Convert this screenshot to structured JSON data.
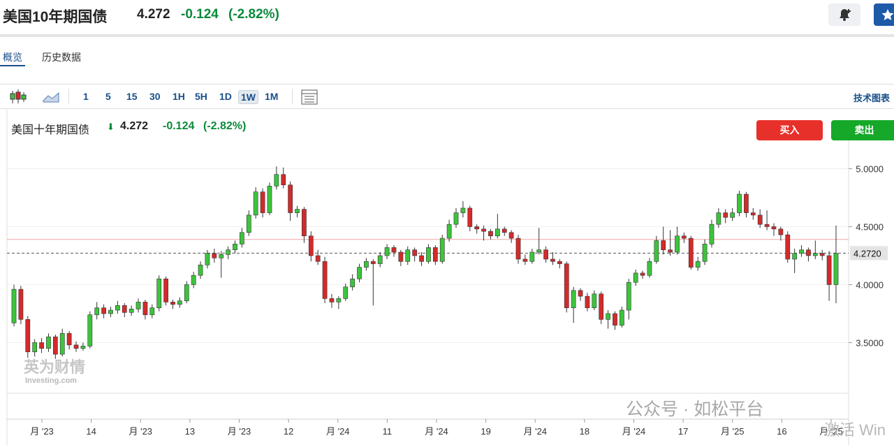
{
  "header": {
    "title": "美国10年期国债",
    "price": "4.272",
    "change": "-0.124",
    "change_pct": "(-2.82%)"
  },
  "tabs": [
    "概览",
    "历史数据"
  ],
  "toolbar": {
    "intervals": [
      "1",
      "5",
      "15",
      "30",
      "1H",
      "5H",
      "1D",
      "1W",
      "1M"
    ],
    "active_interval": "1W",
    "tech": "技术图表"
  },
  "chart_header": {
    "name": "美国十年期国债",
    "price": "4.272",
    "change": "-0.124",
    "change_pct": "(-2.82%)",
    "buy": "买入",
    "sell": "卖出"
  },
  "watermark": {
    "brand": "英为财情",
    "sub": "Investing.com"
  },
  "overlay": {
    "wechat": "公众号 · 如松平台",
    "activate": "激活 Win"
  },
  "chart_data": {
    "type": "candlestick",
    "up_color": "#3cc43c",
    "down_color": "#d42a2a",
    "ylim": [
      2.84,
      5.25
    ],
    "yticks": [
      {
        "value": 5,
        "label": "5.0000"
      },
      {
        "value": 4.5,
        "label": "4.5000"
      },
      {
        "value": 4,
        "label": "4.0000"
      },
      {
        "value": 3.5,
        "label": "3.5000"
      }
    ],
    "last_price_line": {
      "value": 4.272,
      "label": "4.2720"
    },
    "reference_line": 4.39,
    "xlabels": [
      "月 '23",
      "14",
      "月 '23",
      "13",
      "月 '23",
      "12",
      "月 '24",
      "11",
      "月 '24",
      "19",
      "月 '24",
      "18",
      "月 '24",
      "17",
      "月 '25",
      "16",
      "月 '25"
    ],
    "candles": [
      [
        3.67,
        4.0,
        3.64,
        3.96
      ],
      [
        3.96,
        3.99,
        3.66,
        3.7
      ],
      [
        3.7,
        3.73,
        3.37,
        3.42
      ],
      [
        3.42,
        3.53,
        3.38,
        3.5
      ],
      [
        3.5,
        3.54,
        3.41,
        3.45
      ],
      [
        3.45,
        3.58,
        3.42,
        3.55
      ],
      [
        3.55,
        3.57,
        3.36,
        3.4
      ],
      [
        3.4,
        3.62,
        3.38,
        3.58
      ],
      [
        3.58,
        3.6,
        3.44,
        3.48
      ],
      [
        3.48,
        3.51,
        3.42,
        3.45
      ],
      [
        3.45,
        3.5,
        3.43,
        3.47
      ],
      [
        3.47,
        3.77,
        3.45,
        3.74
      ],
      [
        3.74,
        3.85,
        3.7,
        3.8
      ],
      [
        3.8,
        3.83,
        3.71,
        3.75
      ],
      [
        3.75,
        3.81,
        3.72,
        3.78
      ],
      [
        3.78,
        3.86,
        3.75,
        3.82
      ],
      [
        3.82,
        3.84,
        3.72,
        3.76
      ],
      [
        3.76,
        3.82,
        3.73,
        3.79
      ],
      [
        3.79,
        3.88,
        3.76,
        3.85
      ],
      [
        3.85,
        3.87,
        3.7,
        3.74
      ],
      [
        3.74,
        3.83,
        3.71,
        3.8
      ],
      [
        3.8,
        4.08,
        3.77,
        4.05
      ],
      [
        4.05,
        4.07,
        3.82,
        3.85
      ],
      [
        3.85,
        3.87,
        3.79,
        3.83
      ],
      [
        3.83,
        3.89,
        3.8,
        3.86
      ],
      [
        3.86,
        4.03,
        3.84,
        4.0
      ],
      [
        4.0,
        4.11,
        3.97,
        4.08
      ],
      [
        4.08,
        4.2,
        4.05,
        4.17
      ],
      [
        4.17,
        4.3,
        4.14,
        4.27
      ],
      [
        4.27,
        4.31,
        4.19,
        4.23
      ],
      [
        4.23,
        4.29,
        4.06,
        4.26
      ],
      [
        4.26,
        4.33,
        4.22,
        4.3
      ],
      [
        4.3,
        4.38,
        4.27,
        4.35
      ],
      [
        4.35,
        4.49,
        4.32,
        4.45
      ],
      [
        4.45,
        4.64,
        4.42,
        4.6
      ],
      [
        4.6,
        4.84,
        4.57,
        4.8
      ],
      [
        4.8,
        4.83,
        4.58,
        4.62
      ],
      [
        4.62,
        4.88,
        4.6,
        4.85
      ],
      [
        4.85,
        5.02,
        4.82,
        4.95
      ],
      [
        4.95,
        5.01,
        4.83,
        4.86
      ],
      [
        4.86,
        4.89,
        4.55,
        4.62
      ],
      [
        4.62,
        4.68,
        4.58,
        4.65
      ],
      [
        4.65,
        4.67,
        4.36,
        4.42
      ],
      [
        4.42,
        4.46,
        4.2,
        4.25
      ],
      [
        4.25,
        4.3,
        4.17,
        4.2
      ],
      [
        4.2,
        4.24,
        3.84,
        3.88
      ],
      [
        3.88,
        3.92,
        3.8,
        3.85
      ],
      [
        3.85,
        3.9,
        3.79,
        3.88
      ],
      [
        3.88,
        4.01,
        3.86,
        3.98
      ],
      [
        3.98,
        4.09,
        3.95,
        4.05
      ],
      [
        4.05,
        4.18,
        4.02,
        4.15
      ],
      [
        4.15,
        4.23,
        4.12,
        4.2
      ],
      [
        4.2,
        4.22,
        3.82,
        4.18
      ],
      [
        4.18,
        4.28,
        4.15,
        4.25
      ],
      [
        4.25,
        4.35,
        4.22,
        4.32
      ],
      [
        4.32,
        4.34,
        4.24,
        4.28
      ],
      [
        4.28,
        4.3,
        4.16,
        4.2
      ],
      [
        4.2,
        4.33,
        4.17,
        4.3
      ],
      [
        4.3,
        4.32,
        4.2,
        4.25
      ],
      [
        4.25,
        4.28,
        4.16,
        4.2
      ],
      [
        4.2,
        4.35,
        4.18,
        4.32
      ],
      [
        4.32,
        4.34,
        4.17,
        4.2
      ],
      [
        4.2,
        4.43,
        4.18,
        4.4
      ],
      [
        4.4,
        4.56,
        4.37,
        4.52
      ],
      [
        4.52,
        4.66,
        4.49,
        4.62
      ],
      [
        4.62,
        4.72,
        4.58,
        4.66
      ],
      [
        4.66,
        4.68,
        4.46,
        4.5
      ],
      [
        4.5,
        4.52,
        4.44,
        4.48
      ],
      [
        4.48,
        4.51,
        4.38,
        4.46
      ],
      [
        4.46,
        4.48,
        4.39,
        4.42
      ],
      [
        4.42,
        4.61,
        4.4,
        4.48
      ],
      [
        4.48,
        4.5,
        4.42,
        4.45
      ],
      [
        4.45,
        4.47,
        4.36,
        4.4
      ],
      [
        4.4,
        4.43,
        4.18,
        4.22
      ],
      [
        4.22,
        4.26,
        4.17,
        4.2
      ],
      [
        4.2,
        4.31,
        4.18,
        4.28
      ],
      [
        4.28,
        4.49,
        4.26,
        4.3
      ],
      [
        4.3,
        4.33,
        4.19,
        4.22
      ],
      [
        4.22,
        4.28,
        4.17,
        4.2
      ],
      [
        4.2,
        4.22,
        4.14,
        4.18
      ],
      [
        4.18,
        4.2,
        3.76,
        3.8
      ],
      [
        3.8,
        3.98,
        3.67,
        3.95
      ],
      [
        3.95,
        3.97,
        3.86,
        3.9
      ],
      [
        3.9,
        3.93,
        3.77,
        3.8
      ],
      [
        3.8,
        3.95,
        3.78,
        3.92
      ],
      [
        3.92,
        3.94,
        3.66,
        3.7
      ],
      [
        3.7,
        3.78,
        3.62,
        3.75
      ],
      [
        3.75,
        3.77,
        3.61,
        3.65
      ],
      [
        3.65,
        3.81,
        3.63,
        3.78
      ],
      [
        3.78,
        4.05,
        3.7,
        4.02
      ],
      [
        4.02,
        4.13,
        3.99,
        4.1
      ],
      [
        4.1,
        4.12,
        4.05,
        4.08
      ],
      [
        4.08,
        4.23,
        4.06,
        4.2
      ],
      [
        4.2,
        4.42,
        4.18,
        4.38
      ],
      [
        4.38,
        4.5,
        4.26,
        4.3
      ],
      [
        4.3,
        4.47,
        4.25,
        4.28
      ],
      [
        4.28,
        4.5,
        4.26,
        4.42
      ],
      [
        4.42,
        4.45,
        4.36,
        4.4
      ],
      [
        4.4,
        4.42,
        4.13,
        4.15
      ],
      [
        4.15,
        4.24,
        4.12,
        4.2
      ],
      [
        4.2,
        4.39,
        4.17,
        4.35
      ],
      [
        4.35,
        4.56,
        4.32,
        4.52
      ],
      [
        4.52,
        4.66,
        4.49,
        4.62
      ],
      [
        4.62,
        4.65,
        4.53,
        4.58
      ],
      [
        4.58,
        4.66,
        4.55,
        4.62
      ],
      [
        4.62,
        4.81,
        4.59,
        4.78
      ],
      [
        4.78,
        4.8,
        4.58,
        4.62
      ],
      [
        4.62,
        4.66,
        4.56,
        4.6
      ],
      [
        4.6,
        4.65,
        4.49,
        4.52
      ],
      [
        4.52,
        4.64,
        4.47,
        4.5
      ],
      [
        4.5,
        4.53,
        4.42,
        4.48
      ],
      [
        4.48,
        4.5,
        4.38,
        4.43
      ],
      [
        4.43,
        4.46,
        4.19,
        4.22
      ],
      [
        4.22,
        4.31,
        4.1,
        4.27
      ],
      [
        4.27,
        4.34,
        4.24,
        4.3
      ],
      [
        4.3,
        4.32,
        4.2,
        4.25
      ],
      [
        4.25,
        4.38,
        4.22,
        4.27
      ],
      [
        4.27,
        4.3,
        4.21,
        4.25
      ],
      [
        4.25,
        4.29,
        3.86,
        4.0
      ],
      [
        4.0,
        4.51,
        3.84,
        4.27
      ]
    ]
  }
}
